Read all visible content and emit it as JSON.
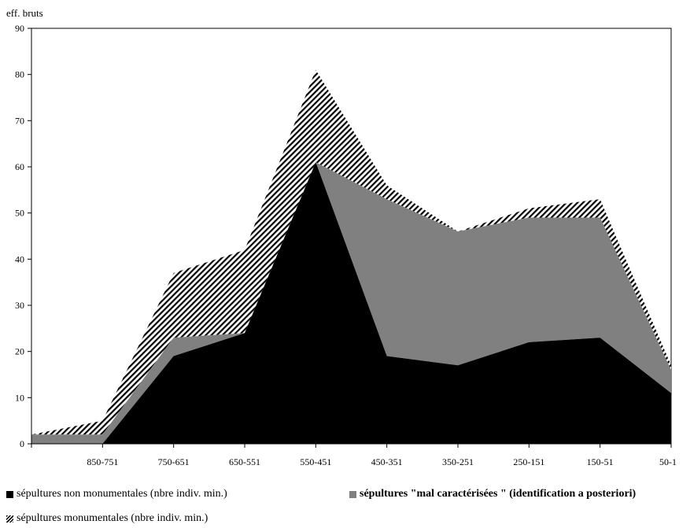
{
  "chart_data": {
    "type": "area",
    "stacked": true,
    "ylabel": "eff. bruts",
    "ylim": [
      0,
      90
    ],
    "yticks": [
      0,
      10,
      20,
      30,
      40,
      50,
      60,
      70,
      80,
      90
    ],
    "categories": [
      "",
      "850-751",
      "750-651",
      "650-551",
      "550-451",
      "450-351",
      "350-251",
      "250-151",
      "150-51",
      "50-1"
    ],
    "series": [
      {
        "name": "sépultures non monumentales (nbre indiv. min.)",
        "color": "#000000",
        "pattern": "solid",
        "values": [
          0,
          0,
          19,
          24,
          61,
          19,
          17,
          22,
          23,
          11
        ]
      },
      {
        "name": "sépultures \"mal caractérisées \" (identification a posteriori)",
        "color": "#808080",
        "pattern": "solid",
        "values": [
          2,
          2,
          4,
          0,
          0,
          34,
          29,
          27,
          26,
          5
        ]
      },
      {
        "name": "sépultures monumentales (nbre indiv. min.)",
        "color": "#000000",
        "pattern": "hatch",
        "values": [
          0,
          3,
          14,
          18,
          20,
          3,
          0,
          2,
          4,
          1
        ]
      }
    ],
    "totals": [
      2,
      5,
      37,
      42,
      81,
      56,
      46,
      51,
      53,
      17
    ],
    "grid": false,
    "legend_position": "bottom"
  }
}
